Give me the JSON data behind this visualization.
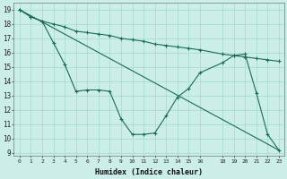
{
  "xlabel": "Humidex (Indice chaleur)",
  "bg_color": "#cceee8",
  "grid_color": "#aaddcc",
  "line_color": "#1a6b5a",
  "xlim": [
    -0.5,
    23.5
  ],
  "ylim": [
    8.8,
    19.5
  ],
  "xticks": [
    0,
    1,
    2,
    3,
    4,
    5,
    6,
    7,
    8,
    9,
    10,
    11,
    12,
    13,
    14,
    15,
    16,
    18,
    19,
    20,
    21,
    22,
    23
  ],
  "yticks": [
    9,
    10,
    11,
    12,
    13,
    14,
    15,
    16,
    17,
    18,
    19
  ],
  "series1_x": [
    0,
    1,
    2,
    3,
    4,
    5,
    6,
    7,
    8,
    9,
    10,
    11,
    12,
    13,
    14,
    15,
    16,
    18,
    19,
    20,
    21,
    22,
    23
  ],
  "series1_y": [
    19.0,
    18.5,
    18.2,
    18.0,
    17.8,
    17.5,
    17.4,
    17.3,
    17.2,
    17.0,
    16.9,
    16.8,
    16.6,
    16.5,
    16.4,
    16.3,
    16.2,
    15.9,
    15.8,
    15.7,
    15.6,
    15.5,
    15.4
  ],
  "series2_x": [
    0,
    1,
    2,
    3,
    4,
    5,
    6,
    7,
    8,
    9,
    10,
    11,
    12,
    13,
    14,
    15,
    16,
    18,
    19,
    20,
    21,
    22,
    23
  ],
  "series2_y": [
    19.0,
    18.5,
    18.2,
    16.7,
    15.2,
    13.3,
    13.4,
    13.4,
    13.3,
    11.4,
    10.3,
    10.3,
    10.4,
    11.6,
    12.9,
    13.5,
    14.6,
    15.3,
    15.8,
    15.9,
    13.2,
    10.3,
    9.2
  ],
  "series3_x": [
    0,
    23
  ],
  "series3_y": [
    19.0,
    9.2
  ]
}
